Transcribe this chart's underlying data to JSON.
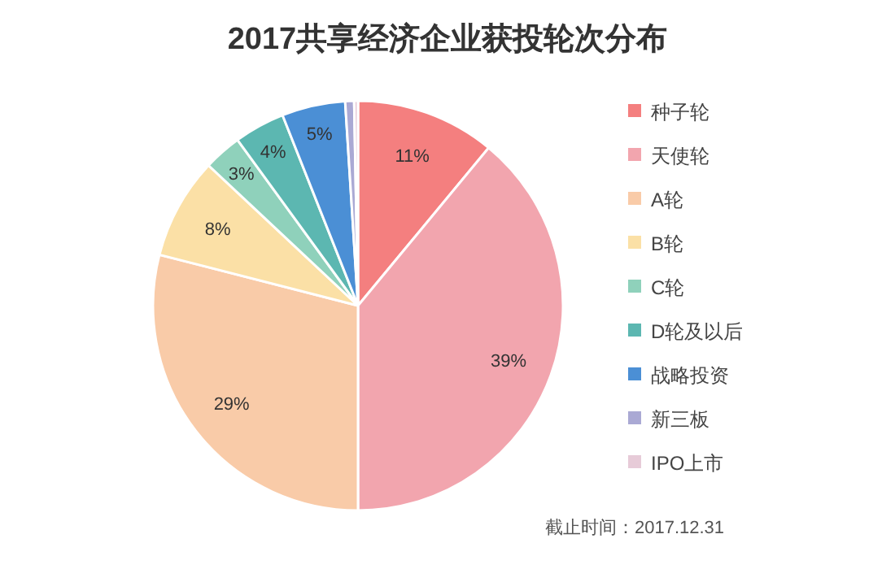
{
  "chart_data": {
    "type": "pie",
    "title": "2017共享经济企业获投轮次分布",
    "categories": [
      "种子轮",
      "天使轮",
      "A轮",
      "B轮",
      "C轮",
      "D轮及以后",
      "战略投资",
      "新三板",
      "IPO上市"
    ],
    "values": [
      11,
      39,
      29,
      8,
      3,
      4,
      5,
      0.7,
      0.3
    ],
    "value_labels": [
      "11%",
      "39%",
      "29%",
      "8%",
      "3%",
      "4%",
      "5%",
      null,
      null
    ],
    "colors": [
      "#f47f7f",
      "#f2a5ae",
      "#f9cba8",
      "#fbe0a6",
      "#8fd1bb",
      "#5cb7b1",
      "#4b8fd5",
      "#aaa9d4",
      "#e7cbd8"
    ],
    "legend": "right",
    "annotations": [
      "截止时间：2017.12.31"
    ]
  }
}
